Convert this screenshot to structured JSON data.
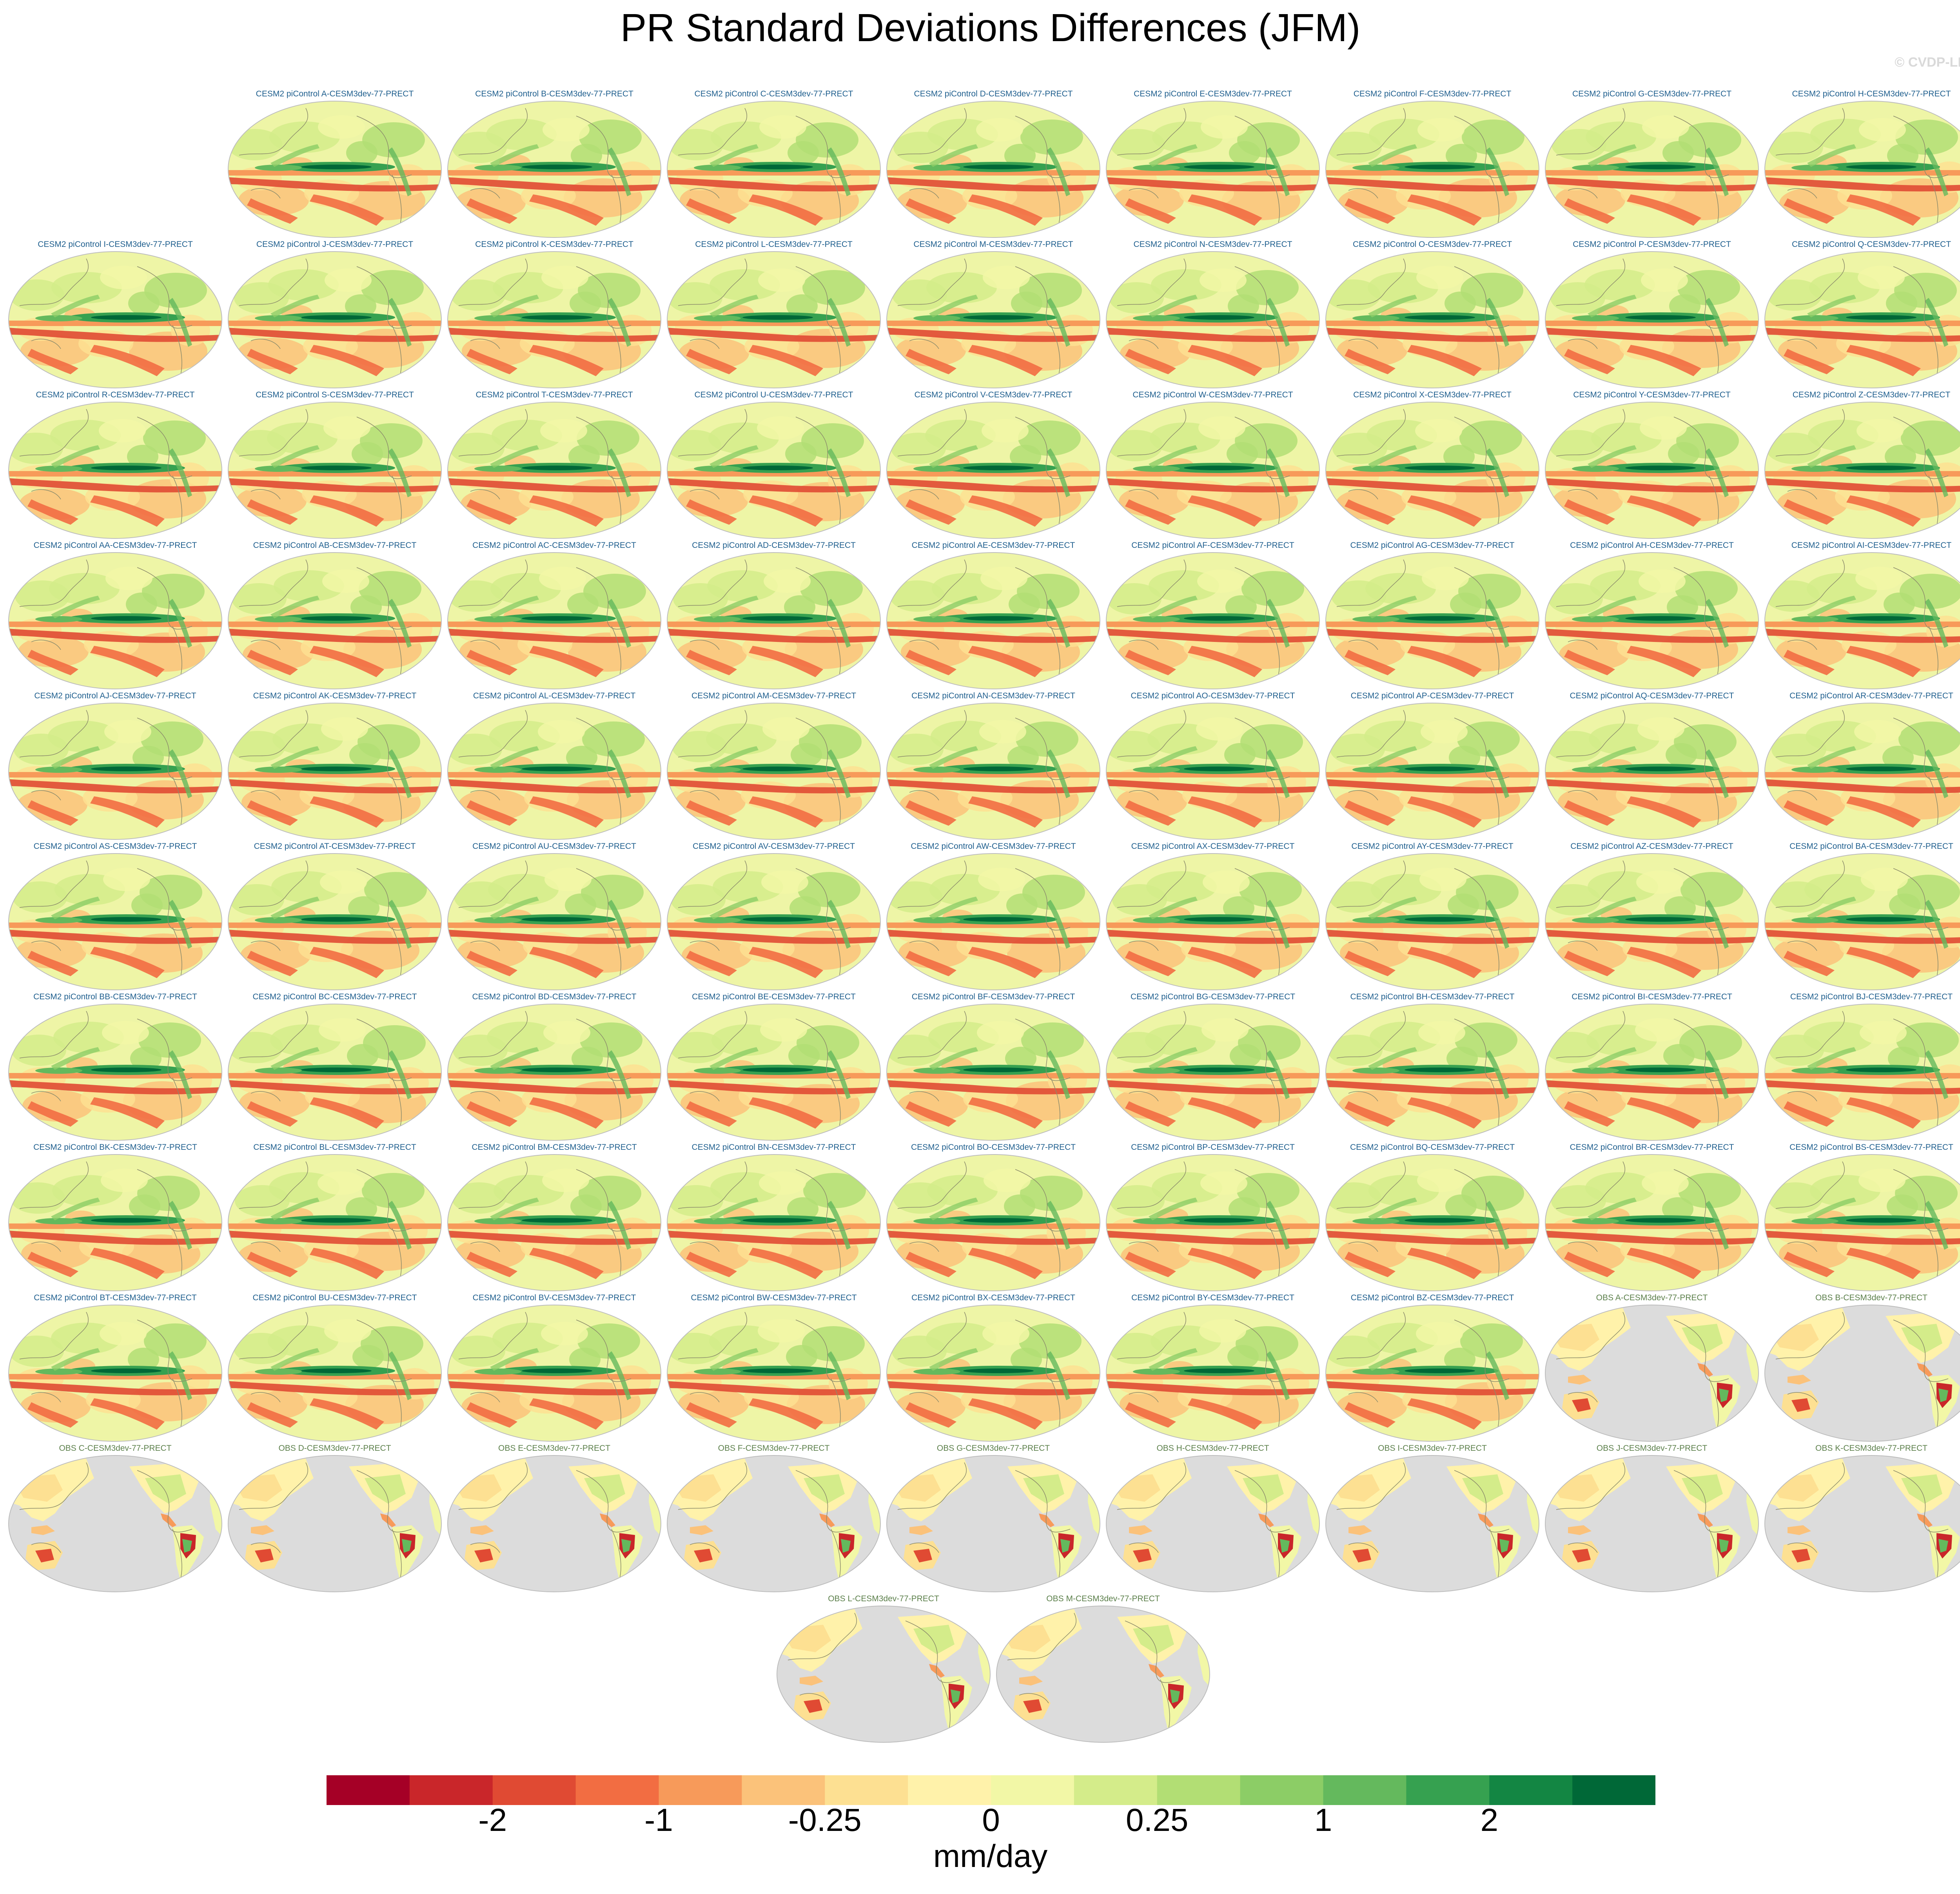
{
  "title": "PR Standard Deviations Differences (JFM)",
  "credit": "© CVDP-LE",
  "model_prefix": "CESM2 piControl ",
  "model_suffix": "-CESM3dev-77-PRECT",
  "model_members": [
    "A",
    "B",
    "C",
    "D",
    "E",
    "F",
    "G",
    "H",
    "I",
    "J",
    "K",
    "L",
    "M",
    "N",
    "O",
    "P",
    "Q",
    "R",
    "S",
    "T",
    "U",
    "V",
    "W",
    "X",
    "Y",
    "Z",
    "AA",
    "AB",
    "AC",
    "AD",
    "AE",
    "AF",
    "AG",
    "AH",
    "AI",
    "AJ",
    "AK",
    "AL",
    "AM",
    "AN",
    "AO",
    "AP",
    "AQ",
    "AR",
    "AS",
    "AT",
    "AU",
    "AV",
    "AW",
    "AX",
    "AY",
    "AZ",
    "BA",
    "BB",
    "BC",
    "BD",
    "BE",
    "BF",
    "BG",
    "BH",
    "BI",
    "BJ",
    "BK",
    "BL",
    "BM",
    "BN",
    "BO",
    "BP",
    "BQ",
    "BR",
    "BS",
    "BT",
    "BU",
    "BV",
    "BW",
    "BX",
    "BY",
    "BZ"
  ],
  "obs_prefix": "OBS ",
  "obs_suffix": "-CESM3dev-77-PRECT",
  "obs_members": [
    "A",
    "B",
    "C",
    "D",
    "E",
    "F",
    "G",
    "H",
    "I",
    "J",
    "K",
    "L",
    "M"
  ],
  "colorbar": {
    "colors": [
      "#a50026",
      "#c9262a",
      "#e04a33",
      "#f26d42",
      "#f79a5a",
      "#fbc27a",
      "#fde092",
      "#fff2aa",
      "#f2f7a6",
      "#d4ec8a",
      "#b2de74",
      "#8ccd66",
      "#64b95d",
      "#36a150",
      "#138643",
      "#006837"
    ],
    "tick_labels": [
      "-2",
      "-1",
      "-0.25",
      "0",
      "0.25",
      "1",
      "2"
    ],
    "label": "mm/day"
  },
  "map_colors": {
    "ocean_base": "#eef5a6",
    "land_missing": "#dcdcdc",
    "coastline": "#8b8b6b",
    "border": "#bdbdbd"
  }
}
